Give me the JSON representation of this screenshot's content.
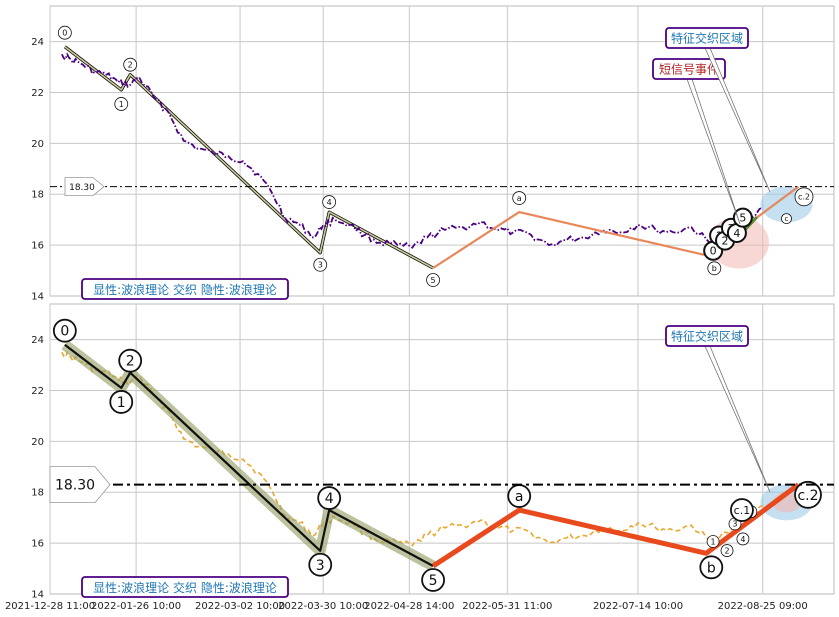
{
  "chart_data": [
    {
      "type": "line",
      "panel": "top",
      "ylim": [
        14,
        25.4
      ],
      "yticks": [
        14,
        16,
        18,
        20,
        22,
        24
      ],
      "grid": true,
      "price_color": "#4b0082",
      "price_style": "dash-dot",
      "price_series": {
        "x": [
          "2022-01-01",
          "2022-01-04",
          "2022-01-08",
          "2022-01-12",
          "2022-01-16",
          "2022-01-20",
          "2022-01-24",
          "2022-01-27",
          "2022-02-01",
          "2022-02-06",
          "2022-02-11",
          "2022-02-16",
          "2022-02-21",
          "2022-02-26",
          "2022-03-03",
          "2022-03-08",
          "2022-03-13",
          "2022-03-17",
          "2022-03-22",
          "2022-03-27",
          "2022-03-30",
          "2022-04-03",
          "2022-04-08",
          "2022-04-13",
          "2022-04-18",
          "2022-04-24",
          "2022-04-29",
          "2022-05-04",
          "2022-05-10",
          "2022-05-16",
          "2022-05-22",
          "2022-05-28",
          "2022-06-02",
          "2022-06-08",
          "2022-06-14",
          "2022-06-20",
          "2022-06-26",
          "2022-07-02",
          "2022-07-08",
          "2022-07-14",
          "2022-07-20",
          "2022-07-26",
          "2022-08-01",
          "2022-08-07",
          "2022-08-13",
          "2022-08-19",
          "2022-08-25"
        ],
        "y": [
          23.5,
          23.3,
          23.1,
          22.8,
          22.7,
          22.4,
          22.3,
          22.6,
          21.8,
          21.2,
          20.1,
          19.8,
          19.6,
          19.5,
          19.3,
          18.8,
          18.0,
          17.1,
          16.8,
          16.3,
          16.8,
          17.0,
          16.8,
          16.4,
          16.1,
          16.0,
          15.9,
          16.3,
          16.6,
          16.7,
          16.9,
          16.6,
          16.5,
          16.4,
          16.0,
          16.2,
          16.3,
          16.6,
          16.5,
          16.8,
          16.6,
          16.5,
          16.7,
          16.1,
          16.4,
          17.0,
          17.5
        ]
      },
      "wave_color": "#cccc99",
      "wave_labels": [
        "0",
        "1",
        "2",
        "3",
        "4",
        "5"
      ],
      "wave_points": {
        "x": [
          "2022-01-02",
          "2022-01-21",
          "2022-01-24",
          "2022-03-29",
          "2022-04-01",
          "2022-05-06"
        ],
        "y": [
          23.8,
          22.1,
          22.7,
          15.7,
          17.3,
          15.1
        ]
      },
      "correction_color": "#e8875a",
      "correction_labels": [
        "a",
        "b",
        "c"
      ],
      "correction_points": {
        "x": [
          "2022-05-06",
          "2022-06-04",
          "2022-08-06",
          "2022-09-06"
        ],
        "y": [
          15.1,
          17.3,
          15.6,
          18.3
        ]
      },
      "sub_wave_labels": [
        "0",
        "1",
        "2",
        "3",
        "4",
        "5"
      ],
      "sub_wave_points": {
        "x": [
          "2022-08-11",
          "2022-08-13",
          "2022-08-15",
          "2022-08-17",
          "2022-08-19",
          "2022-08-21"
        ],
        "y": [
          15.7,
          16.3,
          16.1,
          16.6,
          16.4,
          17.0
        ]
      },
      "green_line": {
        "x": [
          "2022-08-16",
          "2022-08-19",
          "2022-08-23"
        ],
        "y": [
          16.9,
          16.6,
          17.1
        ]
      },
      "label_c2": "c.2",
      "hline": 18.3,
      "hline_label": "18.30",
      "annotations": [
        "特征交织区域",
        "短信号事件"
      ],
      "legend_text": "显性:波浪理论 交织 隐性:波浪理论"
    },
    {
      "type": "line",
      "panel": "bottom",
      "ylim": [
        14,
        25.4
      ],
      "yticks": [
        14,
        16,
        18,
        20,
        22,
        24
      ],
      "grid": true,
      "price_color": "#e8a830",
      "price_style": "dashed",
      "wave_color": "#111111",
      "wave_halo_color": "#98a36a",
      "wave_labels": [
        "0",
        "1",
        "2",
        "3",
        "4",
        "5"
      ],
      "correction_color": "#e8491d",
      "correction_labels": [
        "a",
        "b"
      ],
      "sub_wave_labels": [
        "1",
        "2",
        "3",
        "4",
        "5"
      ],
      "label_c1": "c.1",
      "label_c2": "c.2",
      "hline": 18.3,
      "hline_label": "18.30",
      "annotations": [
        "特征交织区域"
      ],
      "legend_text": "显性:波浪理论 交织 隐性:波浪理论"
    }
  ],
  "x_axis": {
    "start": "2021-12-28",
    "end": "2022-09-18",
    "tick_dates": [
      "2021-12-28",
      "2022-01-26",
      "2022-03-02",
      "2022-03-30",
      "2022-04-28",
      "2022-05-31",
      "2022-07-14",
      "2022-08-25"
    ],
    "tick_labels": [
      "2021-12-28 11:00",
      "2022-01-26 10:00",
      "2022-03-02 10:00",
      "2022-03-30 10:00",
      "2022-04-28 14:00",
      "2022-05-31 11:00",
      "2022-07-14 10:00",
      "2022-08-25 09:00"
    ]
  },
  "colors": {
    "grid": "#c8c8c8",
    "annotation_border": "#4b0082",
    "annotation_text_blue": "#1f77b4",
    "annotation_text_red": "#b22222",
    "hline": "#000000",
    "zone_red": "#f2b8b0",
    "zone_blue": "#9ecbe8"
  }
}
